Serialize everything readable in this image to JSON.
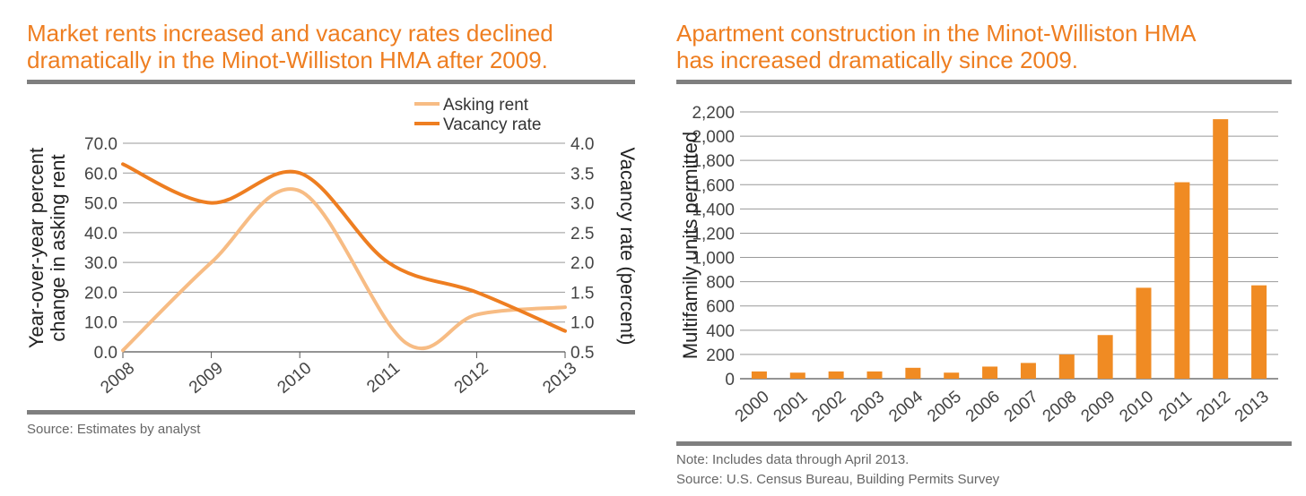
{
  "chart_data": [
    {
      "type": "line",
      "title_lines": [
        "Market rents increased and vacancy rates declined",
        "dramatically in the Minot-Williston HMA after 2009."
      ],
      "ylabel_left_lines": [
        "Year-over-year percent",
        "change in asking rent"
      ],
      "ylabel_right": "Vacancy rate (percent)",
      "categories": [
        "2008",
        "2009",
        "2010",
        "2011",
        "2012",
        "2013"
      ],
      "y_left_ticks": [
        "0.0",
        "10.0",
        "20.0",
        "30.0",
        "40.0",
        "50.0",
        "60.0",
        "70.0"
      ],
      "y_right_ticks": [
        "0.5",
        "1.0",
        "1.5",
        "2.0",
        "2.5",
        "3.0",
        "3.5",
        "4.0"
      ],
      "ylim_left": [
        0,
        70
      ],
      "ylim_right": [
        0.5,
        4.0
      ],
      "legend_position": "top-right",
      "series": [
        {
          "name": "Asking rent",
          "axis": "left",
          "color": "#f7bc84",
          "x": [
            2008,
            2009,
            2010,
            2011.2,
            2012,
            2013
          ],
          "values": [
            0.5,
            30.0,
            54.0,
            3.0,
            12.5,
            15.0
          ]
        },
        {
          "name": "Vacancy rate",
          "axis": "right",
          "color": "#ee7e21",
          "x": [
            2008,
            2009,
            2010,
            2011,
            2012,
            2013
          ],
          "values": [
            3.65,
            3.0,
            3.5,
            2.0,
            1.5,
            0.85
          ]
        }
      ],
      "source": "Source: Estimates by analyst"
    },
    {
      "type": "bar",
      "title_lines": [
        "Apartment construction in the Minot-Williston HMA",
        "has increased dramatically since 2009."
      ],
      "ylabel": "Multifamily units permitted",
      "categories": [
        "2000",
        "2001",
        "2002",
        "2003",
        "2004",
        "2005",
        "2006",
        "2007",
        "2008",
        "2009",
        "2010",
        "2011",
        "2012",
        "2013"
      ],
      "values": [
        60,
        50,
        60,
        60,
        90,
        50,
        100,
        130,
        200,
        360,
        750,
        1620,
        2140,
        770
      ],
      "y_ticks": [
        "0",
        "200",
        "400",
        "600",
        "800",
        "1,000",
        "1,200",
        "1,400",
        "1,600",
        "1,800",
        "2,000",
        "2,200"
      ],
      "ylim": [
        0,
        2200
      ],
      "color": "#f08b23",
      "note": "Note: Includes data through April 2013.",
      "source": "Source: U.S. Census Bureau, Building Permits Survey"
    }
  ]
}
